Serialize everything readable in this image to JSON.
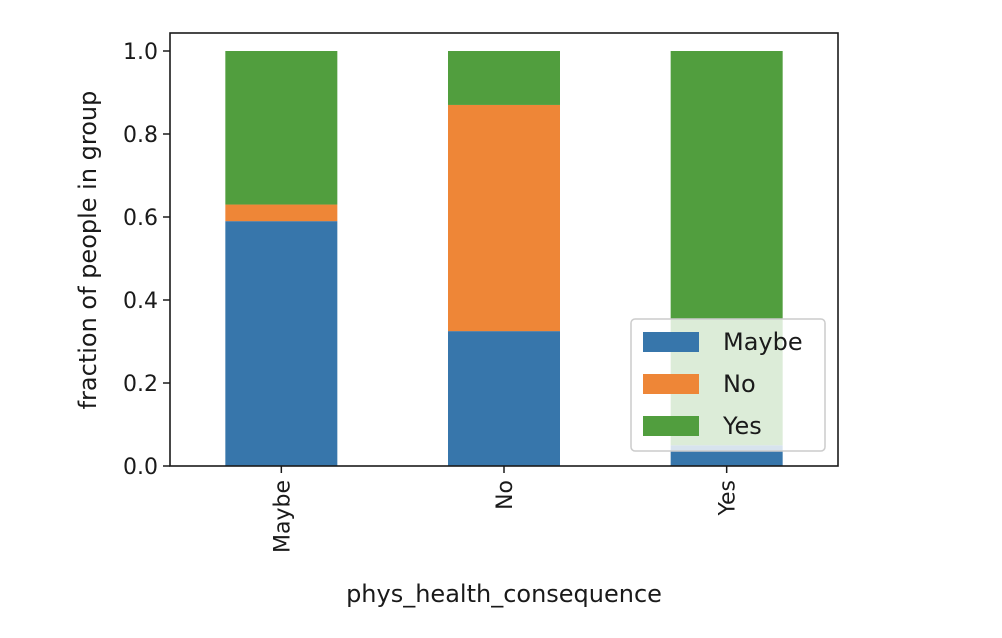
{
  "chart_data": {
    "type": "bar",
    "stacked": true,
    "categories": [
      "Maybe",
      "No",
      "Yes"
    ],
    "series": [
      {
        "name": "Maybe",
        "values": [
          0.59,
          0.325,
          0.05
        ],
        "color": "#3776ab"
      },
      {
        "name": "No",
        "values": [
          0.04,
          0.545,
          0.0
        ],
        "color": "#ee8637"
      },
      {
        "name": "Yes",
        "values": [
          0.37,
          0.13,
          0.95
        ],
        "color": "#519e3e"
      }
    ],
    "title": "",
    "xlabel": "phys_health_consequence",
    "ylabel": "fraction of people in group",
    "ylim": [
      0,
      1.0
    ],
    "yticks": [
      "0.0",
      "0.2",
      "0.4",
      "0.6",
      "0.8",
      "1.0"
    ],
    "ytick_values": [
      0.0,
      0.2,
      0.4,
      0.6,
      0.8,
      1.0
    ],
    "grid": false,
    "legend_position": "lower-right"
  }
}
